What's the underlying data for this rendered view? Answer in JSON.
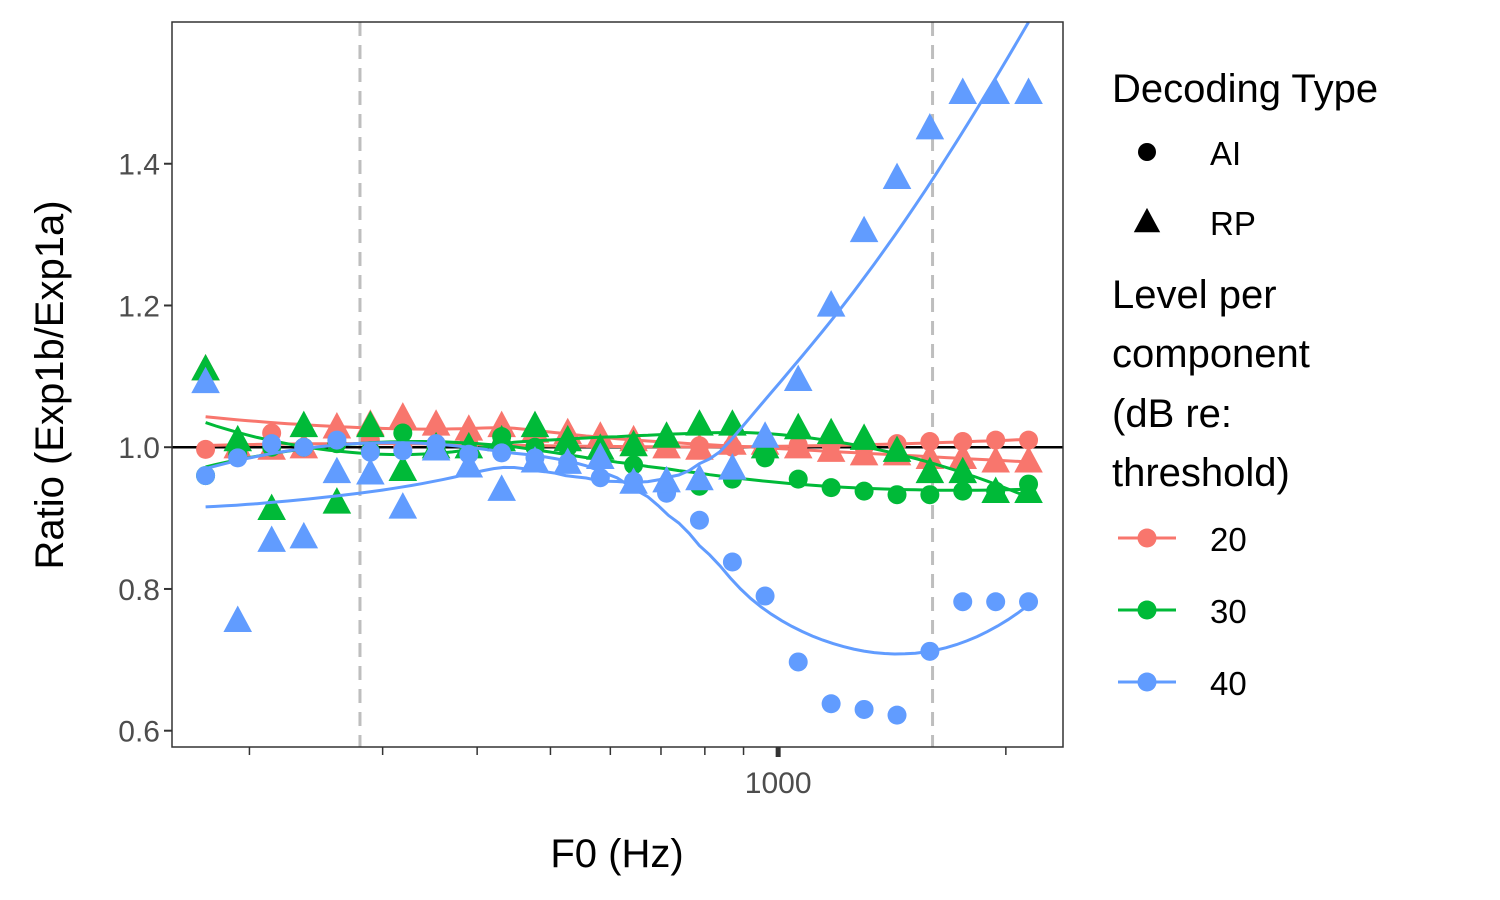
{
  "chart_data": {
    "type": "scatter",
    "title": "",
    "xlabel": "F0 (Hz)",
    "ylabel": "Ratio (Exp1b/Exp1a)",
    "x_scale": "log",
    "xlim": [
      158,
      2380
    ],
    "ylim": [
      0.577,
      1.6
    ],
    "x_ticks": [
      1000
    ],
    "x_tick_labels": [
      "1000"
    ],
    "y_ticks": [
      0.6,
      0.8,
      1.0,
      1.2,
      1.4
    ],
    "y_tick_labels": [
      "0.6",
      "0.8",
      "1.0",
      "1.2",
      "1.4"
    ],
    "reference_line_y": 1.0,
    "vertical_dashed_lines_x": [
      280,
      1600
    ],
    "grid": false,
    "legend_position": "right",
    "legend": {
      "shape_title": "Decoding Type",
      "shape_items": [
        {
          "label": "AI",
          "shape": "circle"
        },
        {
          "label": "RP",
          "shape": "triangle"
        }
      ],
      "color_title_lines": [
        "Level per",
        "component",
        "(dB re:",
        "threshold)"
      ],
      "color_items": [
        {
          "label": "20",
          "color": "#F8766D"
        },
        {
          "label": "30",
          "color": "#00BA38"
        },
        {
          "label": "40",
          "color": "#619CFF"
        }
      ]
    },
    "x": [
      175,
      193,
      214,
      236,
      261,
      289,
      319,
      353,
      390,
      431,
      477,
      527,
      582,
      644,
      712,
      787,
      870,
      961,
      1063,
      1175,
      1299,
      1436,
      1587,
      1754,
      1939,
      2143
    ],
    "series": [
      {
        "name": "20",
        "shape": "AI",
        "color": "#F8766D",
        "values": [
          0.997,
          1.0,
          1.02,
          1.0,
          1.005,
          1.01,
          1.0,
          1.005,
          1.005,
          1.005,
          1.002,
          1.0,
          1.0,
          1.0,
          1.002,
          1.002,
          1.0,
          1.0,
          1.003,
          1.003,
          1.0,
          1.005,
          1.008,
          1.008,
          1.01,
          1.01
        ]
      },
      {
        "name": "20",
        "shape": "RP",
        "color": "#F8766D",
        "values": [
          1.11,
          1.0,
          0.998,
          1.0,
          1.028,
          1.032,
          1.042,
          1.032,
          1.025,
          1.03,
          1.022,
          1.02,
          1.015,
          1.01,
          1.0,
          0.998,
          1.005,
          1.005,
          1.0,
          0.995,
          0.99,
          0.99,
          0.985,
          0.985,
          0.98,
          0.98
        ]
      },
      {
        "name": "30",
        "shape": "AI",
        "color": "#00BA38",
        "values": [
          0.96,
          0.99,
          1.0,
          1.0,
          1.005,
          0.995,
          1.02,
          1.0,
          0.995,
          1.015,
          1.0,
          1.0,
          0.99,
          0.975,
          0.945,
          0.945,
          0.955,
          0.985,
          0.955,
          0.943,
          0.938,
          0.933,
          0.933,
          0.938,
          0.938,
          0.948
        ]
      },
      {
        "name": "30",
        "shape": "RP",
        "color": "#00BA38",
        "values": [
          1.11,
          1.01,
          0.913,
          1.03,
          0.922,
          1.03,
          0.968,
          1.0,
          1.0,
          1.01,
          1.03,
          1.01,
          0.998,
          1.003,
          1.015,
          1.032,
          1.032,
          1.0,
          1.027,
          1.02,
          1.012,
          0.995,
          0.965,
          0.965,
          0.937,
          0.937
        ]
      },
      {
        "name": "40",
        "shape": "AI",
        "color": "#619CFF",
        "values": [
          0.96,
          0.985,
          1.005,
          1.0,
          1.01,
          0.993,
          0.995,
          1.005,
          0.99,
          0.992,
          0.985,
          0.978,
          0.957,
          0.952,
          0.935,
          0.897,
          0.838,
          0.79,
          0.697,
          0.638,
          0.63,
          0.622,
          0.712,
          0.782,
          0.782,
          0.782
        ]
      },
      {
        "name": "40",
        "shape": "RP",
        "color": "#619CFF",
        "values": [
          1.092,
          0.755,
          0.868,
          0.873,
          0.965,
          0.963,
          0.915,
          0.997,
          0.973,
          0.94,
          0.98,
          0.978,
          0.985,
          0.95,
          0.952,
          0.955,
          0.97,
          1.015,
          1.095,
          1.2,
          1.305,
          1.38,
          1.45,
          1.5,
          1.5,
          1.5
        ]
      }
    ]
  }
}
